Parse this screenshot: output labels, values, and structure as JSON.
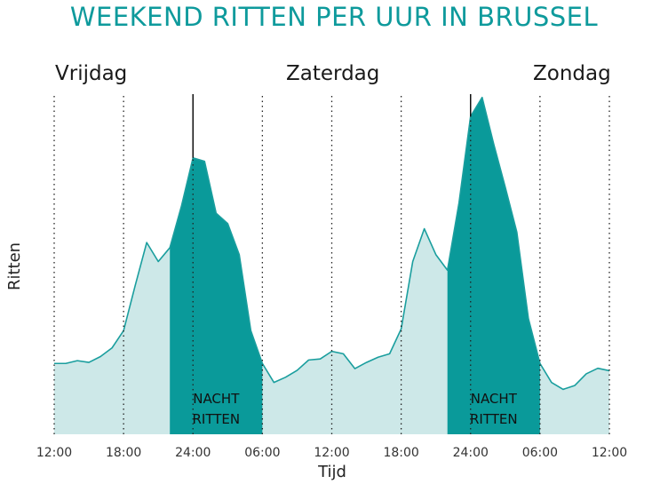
{
  "chart_data": {
    "type": "area",
    "title": "WEEKEND RITTEN PER UUR IN BRUSSEL",
    "xlabel": "Tijd",
    "ylabel": "Ritten",
    "day_labels": [
      "Vrijdag",
      "Zaterdag",
      "Zondag"
    ],
    "x_tick_labels": [
      "12:00",
      "18:00",
      "24:00",
      "06:00",
      "12:00",
      "18:00",
      "24:00",
      "06:00",
      "12:00"
    ],
    "x_range_hours": [
      0,
      48
    ],
    "ylim": [
      0,
      100
    ],
    "night_label_line1": "NACHT",
    "night_label_line2": "RITTEN",
    "night_periods": [
      [
        10,
        18
      ],
      [
        34,
        42
      ]
    ],
    "peak_markers": [
      12,
      36
    ],
    "colors": {
      "night": "#0A9A9A",
      "day_fill": "#CDE8E8",
      "line": "#1A9E9E",
      "title": "#0E9A9C"
    },
    "series": [
      {
        "x": [
          0,
          1,
          2,
          3,
          4,
          5,
          6,
          7,
          8,
          9,
          10,
          11,
          12,
          13,
          14,
          15,
          16,
          17,
          18,
          19,
          20,
          21,
          22,
          23,
          24,
          25,
          26,
          27,
          28,
          29,
          30,
          31,
          32,
          33,
          34,
          35,
          36,
          37,
          38,
          39,
          40,
          41,
          42,
          43,
          44,
          45,
          46,
          47,
          48
        ],
        "values": [
          20.5,
          20.5,
          21.3,
          20.8,
          22.5,
          25,
          30,
          43,
          55.5,
          50,
          54,
          66,
          80,
          79,
          64,
          61,
          52,
          30,
          20.5,
          15,
          16.5,
          18.5,
          21.5,
          21.8,
          24,
          23.3,
          19,
          20.8,
          22.3,
          23.3,
          30.5,
          50,
          59.5,
          52,
          47.5,
          67,
          92,
          97.5,
          84,
          71.5,
          58.5,
          33.5,
          20.5,
          15,
          13,
          14.1,
          17.5,
          19.1,
          18.4
        ]
      }
    ]
  }
}
